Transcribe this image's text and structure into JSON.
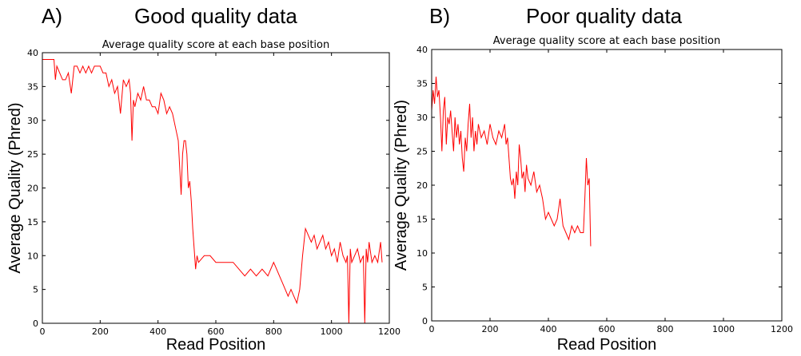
{
  "panels": [
    {
      "letter": "A)",
      "heading": "Good quality data"
    },
    {
      "letter": "B)",
      "heading": "Poor quality data"
    }
  ],
  "chart_data": [
    {
      "type": "line",
      "title": "Average quality score at each base position",
      "xlabel": "Read Position",
      "ylabel": "Average Quality (Phred)",
      "xlim": [
        0,
        1200
      ],
      "ylim": [
        0,
        40
      ],
      "xticks": [
        0,
        200,
        400,
        600,
        800,
        1000,
        1200
      ],
      "yticks": [
        0,
        5,
        10,
        15,
        20,
        25,
        30,
        35,
        40
      ],
      "grid": false,
      "color": "#ff0000",
      "series": [
        {
          "x": [
            0,
            40,
            45,
            50,
            60,
            70,
            80,
            90,
            100,
            110,
            120,
            130,
            140,
            150,
            160,
            170,
            180,
            190,
            200,
            210,
            220,
            230,
            240,
            250,
            260,
            270,
            280,
            290,
            300,
            305,
            310,
            315,
            320,
            330,
            340,
            350,
            360,
            370,
            380,
            390,
            400,
            410,
            420,
            430,
            440,
            450,
            460,
            470,
            480,
            485,
            490,
            495,
            500,
            505,
            510,
            515,
            520,
            525,
            530,
            535,
            540,
            560,
            580,
            600,
            620,
            640,
            660,
            680,
            700,
            720,
            740,
            760,
            780,
            800,
            810,
            820,
            830,
            840,
            850,
            860,
            870,
            880,
            890,
            900,
            910,
            920,
            930,
            940,
            950,
            960,
            970,
            980,
            990,
            1000,
            1010,
            1020,
            1030,
            1040,
            1050,
            1055,
            1060,
            1065,
            1070,
            1080,
            1090,
            1100,
            1110,
            1115,
            1120,
            1125,
            1130,
            1140,
            1150,
            1160,
            1170,
            1175
          ],
          "y": [
            39,
            39,
            36,
            38,
            37,
            36,
            36,
            37,
            34,
            38,
            38,
            37,
            38,
            37,
            38,
            37,
            38,
            38,
            38,
            37,
            37,
            35,
            36,
            34,
            35,
            31,
            36,
            35,
            36,
            34,
            27,
            33,
            32,
            34,
            33,
            35,
            33,
            33,
            32,
            32,
            31,
            34,
            33,
            31,
            32,
            31,
            29,
            27,
            19,
            25,
            27,
            27,
            25,
            20,
            21,
            18,
            14,
            11,
            8,
            10,
            9,
            10,
            10,
            9,
            9,
            9,
            9,
            8,
            7,
            8,
            7,
            8,
            7,
            9,
            8,
            7,
            6,
            5,
            4,
            5,
            4,
            3,
            5,
            10,
            14,
            13,
            12,
            13,
            11,
            12,
            13,
            11,
            12,
            10,
            11,
            9,
            12,
            10,
            9,
            10,
            0,
            11,
            9,
            10,
            11,
            9,
            10,
            0,
            11,
            9,
            12,
            9,
            10,
            9,
            12,
            9
          ]
        }
      ]
    },
    {
      "type": "line",
      "title": "Average quality score at each base position",
      "xlabel": "Read Position",
      "ylabel": "Average Quality (Phred)",
      "xlim": [
        0,
        1200
      ],
      "ylim": [
        0,
        40
      ],
      "xticks": [
        0,
        200,
        400,
        600,
        800,
        1000,
        1200
      ],
      "yticks": [
        0,
        5,
        10,
        15,
        20,
        25,
        30,
        35,
        40
      ],
      "grid": false,
      "color": "#ff0000",
      "series": [
        {
          "x": [
            0,
            5,
            10,
            15,
            20,
            25,
            30,
            35,
            40,
            45,
            50,
            55,
            60,
            65,
            70,
            75,
            80,
            85,
            90,
            95,
            100,
            105,
            110,
            115,
            120,
            125,
            130,
            135,
            140,
            145,
            150,
            155,
            160,
            170,
            180,
            190,
            200,
            210,
            220,
            230,
            240,
            250,
            255,
            260,
            265,
            270,
            275,
            280,
            285,
            290,
            295,
            300,
            305,
            310,
            315,
            320,
            325,
            330,
            340,
            350,
            360,
            370,
            380,
            390,
            400,
            410,
            420,
            430,
            440,
            450,
            460,
            470,
            480,
            490,
            500,
            510,
            520,
            525,
            530,
            535,
            540,
            545
          ],
          "y": [
            31,
            34,
            32,
            36,
            33,
            34,
            30,
            25,
            31,
            33,
            26,
            30,
            29,
            31,
            28,
            25,
            30,
            27,
            29,
            26,
            28,
            24,
            22,
            27,
            25,
            29,
            32,
            27,
            30,
            25,
            28,
            26,
            29,
            27,
            28,
            26,
            29,
            27,
            26,
            28,
            27,
            29,
            26,
            27,
            24,
            21,
            20,
            21,
            18,
            22,
            20,
            26,
            24,
            21,
            22,
            19,
            23,
            21,
            20,
            22,
            19,
            20,
            18,
            15,
            16,
            15,
            14,
            15,
            18,
            14,
            13,
            12,
            14,
            13,
            14,
            13,
            13,
            18,
            24,
            20,
            21,
            11
          ]
        }
      ]
    }
  ]
}
